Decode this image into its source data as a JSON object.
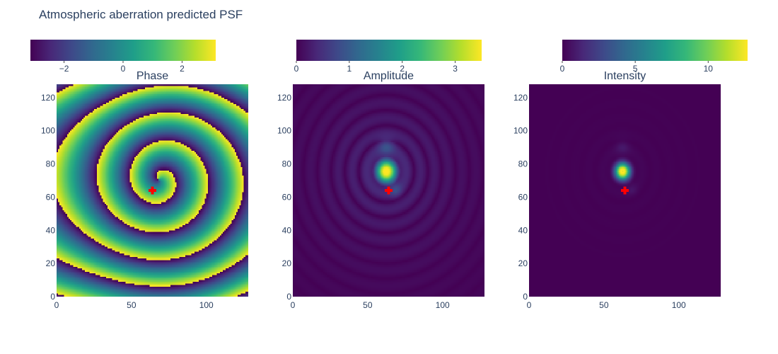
{
  "chart_data": {
    "type": "heatmap",
    "title": "Atmospheric aberration predicted PSF",
    "colorscale": [
      "#440154",
      "#482878",
      "#3e4989",
      "#31688e",
      "#26828e",
      "#1f9e89",
      "#35b779",
      "#6ece58",
      "#b5de2b",
      "#fde725"
    ],
    "marker_color": "#ff0000",
    "marker": {
      "symbol": "cross",
      "x": 64,
      "y": 64
    },
    "grid_size": 128,
    "panels": [
      {
        "key": "phase",
        "subtitle": "Phase",
        "zmin": -3.14,
        "zmax": 3.14,
        "colorbar_ticks": [
          {
            "value": -2,
            "label": "−2"
          },
          {
            "value": 0,
            "label": "0"
          },
          {
            "value": 2,
            "label": "2"
          }
        ],
        "x_ticks": [
          {
            "value": 0,
            "label": "0"
          },
          {
            "value": 50,
            "label": "50"
          },
          {
            "value": 100,
            "label": "100"
          }
        ],
        "y_ticks": [
          {
            "value": 0,
            "label": "0"
          },
          {
            "value": 20,
            "label": "20"
          },
          {
            "value": 40,
            "label": "40"
          },
          {
            "value": 60,
            "label": "60"
          },
          {
            "value": 80,
            "label": "80"
          },
          {
            "value": 100,
            "label": "100"
          },
          {
            "value": 120,
            "label": "120"
          }
        ]
      },
      {
        "key": "amplitude",
        "subtitle": "Amplitude",
        "zmin": 0,
        "zmax": 3.5,
        "colorbar_ticks": [
          {
            "value": 0,
            "label": "0"
          },
          {
            "value": 1,
            "label": "1"
          },
          {
            "value": 2,
            "label": "2"
          },
          {
            "value": 3,
            "label": "3"
          }
        ],
        "x_ticks": [
          {
            "value": 0,
            "label": "0"
          },
          {
            "value": 50,
            "label": "50"
          },
          {
            "value": 100,
            "label": "100"
          }
        ],
        "y_ticks": [
          {
            "value": 0,
            "label": "0"
          },
          {
            "value": 20,
            "label": "20"
          },
          {
            "value": 40,
            "label": "40"
          },
          {
            "value": 60,
            "label": "60"
          },
          {
            "value": 80,
            "label": "80"
          },
          {
            "value": 100,
            "label": "100"
          },
          {
            "value": 120,
            "label": "120"
          }
        ]
      },
      {
        "key": "intensity",
        "subtitle": "Intensity",
        "zmin": 0,
        "zmax": 12.7,
        "colorbar_ticks": [
          {
            "value": 0,
            "label": "0"
          },
          {
            "value": 5,
            "label": "5"
          },
          {
            "value": 10,
            "label": "10"
          }
        ],
        "x_ticks": [
          {
            "value": 0,
            "label": "0"
          },
          {
            "value": 50,
            "label": "50"
          },
          {
            "value": 100,
            "label": "100"
          }
        ],
        "y_ticks": [
          {
            "value": 0,
            "label": "0"
          },
          {
            "value": 20,
            "label": "20"
          },
          {
            "value": 40,
            "label": "40"
          },
          {
            "value": 60,
            "label": "60"
          },
          {
            "value": 80,
            "label": "80"
          },
          {
            "value": 100,
            "label": "100"
          },
          {
            "value": 120,
            "label": "120"
          }
        ]
      }
    ]
  }
}
